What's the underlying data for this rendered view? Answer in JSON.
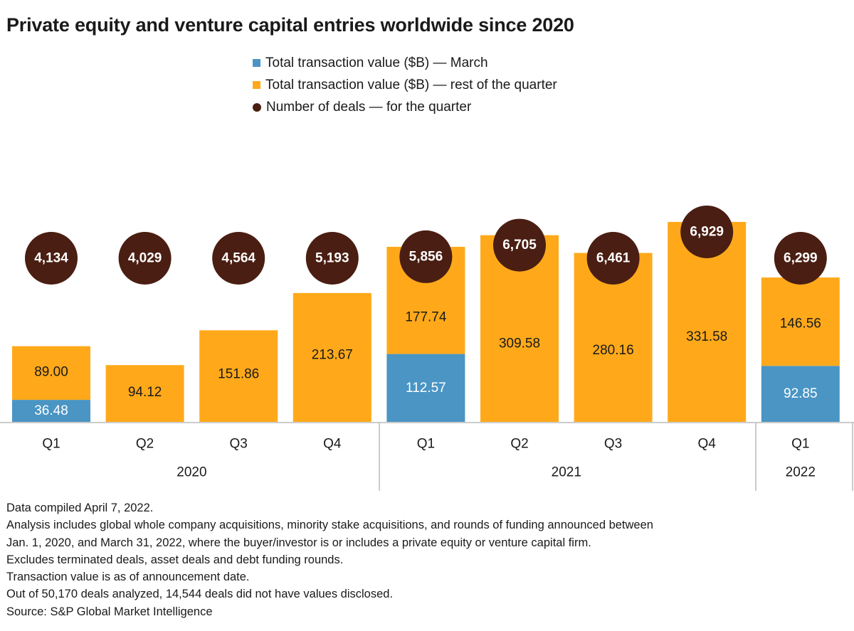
{
  "title": "Private equity and venture capital entries worldwide since 2020",
  "legend": {
    "march": "Total transaction value ($B) — March",
    "rest": "Total transaction value ($B) — rest of the quarter",
    "deals": "Number of deals — for the quarter"
  },
  "colors": {
    "march": "#4a95c4",
    "rest": "#ffa91a",
    "deals": "#4a1e12",
    "deals_text": "#ffffff",
    "axis": "#bbbbbb"
  },
  "chart_data": {
    "type": "bar",
    "stacked": true,
    "title": "Private equity and venture capital entries worldwide since 2020",
    "categories": [
      "Q1",
      "Q2",
      "Q3",
      "Q4",
      "Q1",
      "Q2",
      "Q3",
      "Q4",
      "Q1"
    ],
    "groups": [
      {
        "label": "2020",
        "count": 4
      },
      {
        "label": "2021",
        "count": 4
      },
      {
        "label": "2022",
        "count": 1
      }
    ],
    "series": [
      {
        "name": "Total transaction value ($B) — March",
        "values": [
          36.48,
          null,
          null,
          null,
          112.57,
          null,
          null,
          null,
          92.85
        ]
      },
      {
        "name": "Total transaction value ($B) — rest of the quarter",
        "values": [
          89.0,
          94.12,
          151.86,
          213.67,
          177.74,
          309.58,
          280.16,
          331.58,
          146.56
        ]
      }
    ],
    "deals": {
      "name": "Number of deals — for the quarter",
      "values": [
        4134,
        4029,
        4564,
        5193,
        5856,
        6705,
        6461,
        6929,
        6299
      ],
      "labels": [
        "4,134",
        "4,029",
        "4,564",
        "5,193",
        "5,856",
        "6,705",
        "6,461",
        "6,929",
        "6,299"
      ]
    },
    "value_labels": {
      "march": [
        "36.48",
        "",
        "",
        "",
        "112.57",
        "",
        "",
        "",
        "92.85"
      ],
      "rest": [
        "89.00",
        "94.12",
        "151.86",
        "213.67",
        "177.74",
        "309.58",
        "280.16",
        "331.58",
        "146.56"
      ]
    },
    "xlabel": "",
    "ylabel": "",
    "ylim": [
      0,
      331.58
    ]
  },
  "notes": [
    "Data compiled April 7, 2022.",
    "Analysis includes global whole company acquisitions, minority stake acquisitions, and rounds of funding announced between",
    "Jan. 1, 2020, and March 31, 2022, where the buyer/investor is or includes a private equity or venture capital firm.",
    "Excludes terminated deals, asset deals and debt funding rounds.",
    "Transaction value is as of announcement date.",
    "Out of 50,170 deals analyzed, 14,544 deals did not have values disclosed.",
    "Source: S&P Global Market Intelligence"
  ]
}
